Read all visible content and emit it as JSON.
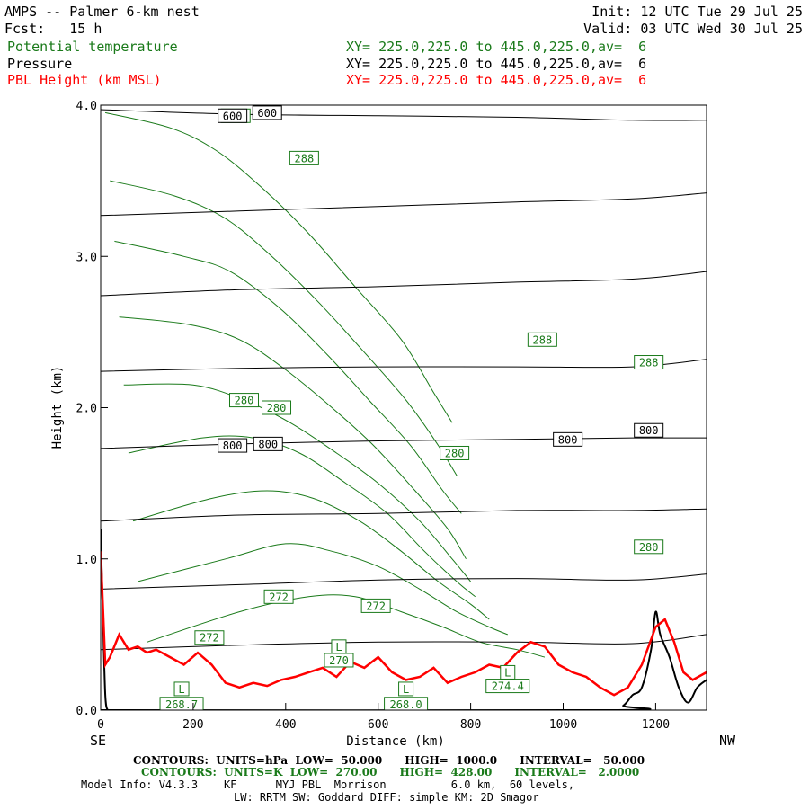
{
  "header": {
    "title": "AMPS -- Palmer 6-km nest",
    "fcst": "Fcst:   15 h",
    "init": "Init: 12 UTC Tue 29 Jul 25",
    "valid": "Valid: 03 UTC Wed 30 Jul 25"
  },
  "fields": [
    {
      "name": "Potential temperature",
      "xy": "XY= 225.0,225.0 to 445.0,225.0,av=  6",
      "color": "#1a7a1a"
    },
    {
      "name": "Pressure",
      "xy": "XY= 225.0,225.0 to 445.0,225.0,av=  6",
      "color": "#000000"
    },
    {
      "name": "PBL Height (km MSL)",
      "xy": "XY= 225.0,225.0 to 445.0,225.0,av=  6",
      "color": "#ff0000"
    }
  ],
  "axes": {
    "ylabel": "Height (km)",
    "xlabel": "Distance (km)",
    "left_end": "SE",
    "right_end": "NW",
    "y_ticks": [
      "0.0",
      "1.0",
      "2.0",
      "3.0",
      "4.0"
    ],
    "x_ticks": [
      "0",
      "200",
      "400",
      "600",
      "800",
      "1000",
      "1200"
    ]
  },
  "footer": {
    "pressure_contours": "CONTOURS:  UNITS=hPa  LOW=  50.000      HIGH=  1000.0      INTERVAL=   50.000",
    "theta_contours": "CONTOURS:  UNITS=K  LOW=  270.00      HIGH=  428.00      INTERVAL=   2.0000",
    "model_info_1": "Model Info: V4.3.3    KF      MYJ PBL  Morrison          6.0 km,  60 levels,",
    "model_info_2": "LW: RRTM SW: Goddard DIFF: simple KM: 2D Smagor"
  },
  "chart_data": {
    "type": "line",
    "xlim": [
      0,
      1310
    ],
    "ylim": [
      0,
      4.0
    ],
    "x_units": "km",
    "y_units": "km",
    "grid": false,
    "pressure_contours_hpa": [
      {
        "level": 600,
        "x": [
          0,
          300,
          600,
          900,
          1150,
          1310
        ],
        "y": [
          3.97,
          3.94,
          3.93,
          3.92,
          3.9,
          3.9
        ]
      },
      {
        "level": 650,
        "x": [
          0,
          300,
          600,
          900,
          1150,
          1310
        ],
        "y": [
          3.27,
          3.3,
          3.33,
          3.36,
          3.38,
          3.42
        ]
      },
      {
        "level": 700,
        "x": [
          0,
          300,
          600,
          900,
          1150,
          1310
        ],
        "y": [
          2.74,
          2.78,
          2.8,
          2.83,
          2.85,
          2.9
        ]
      },
      {
        "level": 750,
        "x": [
          0,
          300,
          600,
          900,
          1150,
          1310
        ],
        "y": [
          2.24,
          2.26,
          2.27,
          2.27,
          2.27,
          2.32
        ]
      },
      {
        "level": 800,
        "x": [
          0,
          300,
          600,
          900,
          1150,
          1310
        ],
        "y": [
          1.73,
          1.76,
          1.78,
          1.79,
          1.8,
          1.8
        ]
      },
      {
        "level": 850,
        "x": [
          0,
          300,
          600,
          900,
          1150,
          1310
        ],
        "y": [
          1.25,
          1.29,
          1.3,
          1.32,
          1.32,
          1.33
        ]
      },
      {
        "level": 900,
        "x": [
          0,
          300,
          600,
          900,
          1150,
          1310
        ],
        "y": [
          0.8,
          0.83,
          0.86,
          0.87,
          0.86,
          0.9
        ]
      },
      {
        "level": 950,
        "x": [
          0,
          300,
          600,
          900,
          1150,
          1310
        ],
        "y": [
          0.4,
          0.43,
          0.45,
          0.45,
          0.44,
          0.5
        ]
      }
    ],
    "pressure_labels": [
      {
        "text": "600",
        "x": 285,
        "y": 3.93
      },
      {
        "text": "600",
        "x": 360,
        "y": 3.95
      },
      {
        "text": "800",
        "x": 285,
        "y": 1.75
      },
      {
        "text": "800",
        "x": 362,
        "y": 1.76
      },
      {
        "text": "800",
        "x": 1010,
        "y": 1.79
      },
      {
        "text": "800",
        "x": 1185,
        "y": 1.85
      }
    ],
    "theta_contours_k": [
      {
        "x": [
          10,
          150,
          250,
          350,
          450,
          550,
          650,
          720,
          760
        ],
        "y": [
          3.95,
          3.85,
          3.7,
          3.45,
          3.15,
          2.8,
          2.45,
          2.1,
          1.9
        ]
      },
      {
        "x": [
          20,
          160,
          270,
          370,
          470,
          560,
          660,
          730,
          770
        ],
        "y": [
          3.5,
          3.4,
          3.25,
          3.0,
          2.7,
          2.4,
          2.05,
          1.75,
          1.55
        ]
      },
      {
        "x": [
          30,
          180,
          280,
          390,
          490,
          580,
          670,
          740,
          780
        ],
        "y": [
          3.1,
          3.0,
          2.9,
          2.65,
          2.35,
          2.05,
          1.75,
          1.45,
          1.3
        ]
      },
      {
        "x": [
          40,
          190,
          300,
          400,
          500,
          590,
          680,
          750,
          790
        ],
        "y": [
          2.6,
          2.55,
          2.45,
          2.25,
          2.0,
          1.75,
          1.45,
          1.2,
          1.0
        ]
      },
      {
        "x": [
          50,
          200,
          310,
          410,
          510,
          600,
          690,
          760,
          800
        ],
        "y": [
          2.15,
          2.15,
          2.05,
          1.9,
          1.7,
          1.5,
          1.25,
          1.0,
          0.85
        ]
      },
      {
        "x": [
          60,
          220,
          330,
          430,
          530,
          620,
          700,
          770,
          810
        ],
        "y": [
          1.7,
          1.8,
          1.8,
          1.7,
          1.5,
          1.3,
          1.05,
          0.85,
          0.75
        ]
      },
      {
        "x": [
          70,
          240,
          360,
          460,
          560,
          650,
          730,
          800,
          840
        ],
        "y": [
          1.25,
          1.4,
          1.45,
          1.4,
          1.25,
          1.05,
          0.85,
          0.7,
          0.6
        ]
      },
      {
        "x": [
          80,
          270,
          400,
          500,
          600,
          690,
          770,
          840,
          880
        ],
        "y": [
          0.85,
          1.0,
          1.1,
          1.05,
          0.95,
          0.8,
          0.65,
          0.55,
          0.5
        ]
      },
      {
        "x": [
          100,
          300,
          450,
          550,
          650,
          740,
          820,
          900,
          960
        ],
        "y": [
          0.45,
          0.65,
          0.75,
          0.75,
          0.65,
          0.55,
          0.45,
          0.4,
          0.35
        ]
      }
    ],
    "theta_labels": [
      {
        "text": "288",
        "x": 292,
        "y": 3.93
      },
      {
        "text": "288",
        "x": 440,
        "y": 3.65
      },
      {
        "text": "288",
        "x": 955,
        "y": 2.45
      },
      {
        "text": "288",
        "x": 1185,
        "y": 2.3
      },
      {
        "text": "280",
        "x": 310,
        "y": 2.05
      },
      {
        "text": "280",
        "x": 380,
        "y": 2.0
      },
      {
        "text": "280",
        "x": 765,
        "y": 1.7
      },
      {
        "text": "280",
        "x": 1185,
        "y": 1.08
      },
      {
        "text": "272",
        "x": 385,
        "y": 0.75
      },
      {
        "text": "272",
        "x": 595,
        "y": 0.69
      },
      {
        "text": "272",
        "x": 235,
        "y": 0.48
      },
      {
        "text": "L",
        "x": 515,
        "y": 0.42
      },
      {
        "text": "270",
        "x": 515,
        "y": 0.33
      },
      {
        "text": "L",
        "x": 175,
        "y": 0.14
      },
      {
        "text": "268.7",
        "x": 175,
        "y": 0.04
      },
      {
        "text": "L",
        "x": 660,
        "y": 0.14
      },
      {
        "text": "268.0",
        "x": 660,
        "y": 0.04
      },
      {
        "text": "L",
        "x": 880,
        "y": 0.25
      },
      {
        "text": "274.4",
        "x": 880,
        "y": 0.16
      }
    ],
    "pbl_height_km": {
      "x": [
        0,
        10,
        20,
        40,
        60,
        80,
        100,
        120,
        150,
        180,
        210,
        240,
        270,
        300,
        330,
        360,
        390,
        420,
        450,
        480,
        510,
        540,
        570,
        600,
        630,
        660,
        690,
        720,
        750,
        780,
        810,
        840,
        870,
        900,
        930,
        960,
        990,
        1020,
        1050,
        1080,
        1110,
        1140,
        1170,
        1200,
        1220,
        1240,
        1260,
        1280,
        1310
      ],
      "y": [
        1.05,
        0.3,
        0.35,
        0.5,
        0.4,
        0.42,
        0.38,
        0.4,
        0.35,
        0.3,
        0.38,
        0.3,
        0.18,
        0.15,
        0.18,
        0.16,
        0.2,
        0.22,
        0.25,
        0.28,
        0.22,
        0.32,
        0.28,
        0.35,
        0.25,
        0.2,
        0.22,
        0.28,
        0.18,
        0.22,
        0.25,
        0.3,
        0.28,
        0.38,
        0.45,
        0.42,
        0.3,
        0.25,
        0.22,
        0.15,
        0.1,
        0.15,
        0.3,
        0.55,
        0.6,
        0.45,
        0.25,
        0.2,
        0.25
      ]
    },
    "terrain_km": {
      "x": [
        0,
        5,
        10,
        15,
        20,
        1100,
        1130,
        1150,
        1170,
        1190,
        1200,
        1210,
        1230,
        1250,
        1270,
        1290,
        1310
      ],
      "y": [
        1.2,
        0.6,
        0.1,
        0.0,
        0.0,
        0.0,
        0.03,
        0.1,
        0.15,
        0.4,
        0.65,
        0.5,
        0.35,
        0.15,
        0.05,
        0.15,
        0.2
      ]
    }
  }
}
